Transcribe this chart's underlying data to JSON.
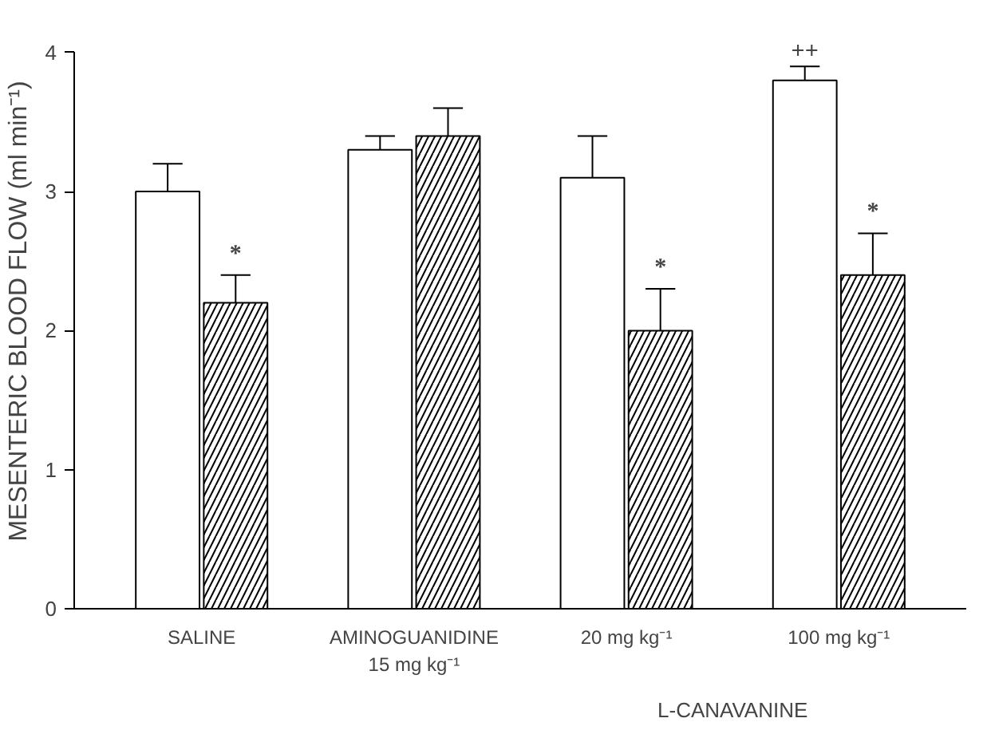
{
  "chart_data": {
    "type": "bar",
    "ylabel": "MESENTERIC BLOOD FLOW (ml min⁻¹)",
    "categories": [
      "SALINE",
      "AMINOGUANIDINE\n15 mg kg⁻¹",
      "20 mg kg⁻¹",
      "100 mg kg⁻¹"
    ],
    "series": [
      {
        "color": "#ffffff",
        "values": [
          3.0,
          3.3,
          3.1,
          3.8
        ],
        "errors": [
          0.2,
          0.1,
          0.3,
          0.1
        ],
        "value_labels": [
          null,
          null,
          null,
          "++"
        ]
      },
      {
        "color": "#ffffff",
        "values": [
          2.2,
          3.4,
          2.0,
          2.4
        ],
        "errors": [
          0.2,
          0.2,
          0.3,
          0.3
        ],
        "value_labels": [
          "*",
          null,
          "*",
          "*"
        ]
      }
    ],
    "ylim": [
      0,
      4
    ],
    "yticks": [
      0,
      1,
      2,
      3,
      4
    ],
    "grid": false,
    "annotations": [
      "L-CANAVANINE"
    ]
  }
}
